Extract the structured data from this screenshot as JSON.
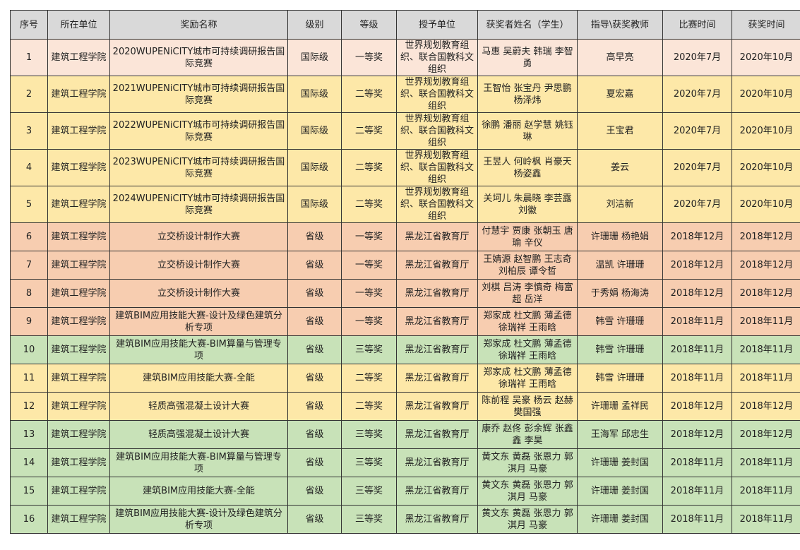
{
  "headers": [
    "序号",
    "所在单位",
    "奖励名称",
    "级别",
    "等级",
    "授予单位",
    "获奖者姓名（学生）",
    "指导\\获奖教师",
    "比赛时间",
    "获奖时间"
  ],
  "row_colors": {
    "pink": "#fbe5d8",
    "yellow": "#fde8a8",
    "salmon": "#f7cdb0",
    "green": "#c8e2b8",
    "header": "#d9d9d9"
  },
  "rows": [
    {
      "color": "pink",
      "cells": [
        "1",
        "建筑工程学院",
        "2020WUPENiCITY城市可持续调研报告国际竞赛",
        "国际级",
        "一等奖",
        "世界规划教育组织、联合国教科文组织",
        "马惠 吴蔚夫 韩瑞 李智勇",
        "高早亮",
        "2020年7月",
        "2020年10月"
      ]
    },
    {
      "color": "yellow",
      "cells": [
        "2",
        "建筑工程学院",
        "2021WUPENiCITY城市可持续调研报告国际竞赛",
        "国际级",
        "二等奖",
        "世界规划教育组织、联合国教科文组织",
        "王智怡 张宝丹 尹思鹏 杨泽炜",
        "夏宏嘉",
        "2020年7月",
        "2020年10月"
      ]
    },
    {
      "color": "yellow",
      "cells": [
        "3",
        "建筑工程学院",
        "2022WUPENiCITY城市可持续调研报告国际竞赛",
        "国际级",
        "二等奖",
        "世界规划教育组织、联合国教科文组织",
        "徐鹏 潘丽 赵学慧 姚钰琳",
        "王宝君",
        "2020年7月",
        "2020年10月"
      ]
    },
    {
      "color": "yellow",
      "cells": [
        "4",
        "建筑工程学院",
        "2023WUPENiCITY城市可持续调研报告国际竞赛",
        "国际级",
        "二等奖",
        "世界规划教育组织、联合国教科文组织",
        "王昱人 何岭枫 肖豪天 杨姿鑫",
        "姜云",
        "2020年7月",
        "2020年10月"
      ]
    },
    {
      "color": "yellow",
      "cells": [
        "5",
        "建筑工程学院",
        "2024WUPENiCITY城市可持续调研报告国际竞赛",
        "国际级",
        "二等奖",
        "世界规划教育组织、联合国教科文组织",
        "关坷儿 朱晨晓 李芸露 刘徽",
        "刘洁新",
        "2020年7月",
        "2020年10月"
      ]
    },
    {
      "color": "salmon",
      "cells": [
        "6",
        "建筑工程学院",
        "立交桥设计制作大赛",
        "省级",
        "一等奖",
        "黑龙江省教育厅",
        "付慧宇 贾康 张朝玉 唐瑜 辛仪",
        "许珊珊 杨艳娟",
        "2018年12月",
        "2018年12月"
      ]
    },
    {
      "color": "salmon",
      "cells": [
        "7",
        "建筑工程学院",
        "立交桥设计制作大赛",
        "省级",
        "一等奖",
        "黑龙江省教育厅",
        "王婧源 赵智鹏 王志奇 刘柏辰 谭令哲",
        "温凯 许珊珊",
        "2018年12月",
        "2018年12月"
      ]
    },
    {
      "color": "salmon",
      "cells": [
        "8",
        "建筑工程学院",
        "立交桥设计制作大赛",
        "省级",
        "一等奖",
        "黑龙江省教育厅",
        "刘棋 吕涛 李慎奇 梅富超 岳洋",
        "于秀娟 杨海涛",
        "2018年12月",
        "2018年12月"
      ]
    },
    {
      "color": "salmon",
      "cells": [
        "9",
        "建筑工程学院",
        "建筑BIM应用技能大赛-设计及绿色建筑分析专项",
        "省级",
        "一等奖",
        "黑龙江省教育厅",
        "郑家成 杜文鹏 薄孟德 徐瑞祥 王雨晗",
        "韩雪 许珊珊",
        "2018年11月",
        "2018年11月"
      ]
    },
    {
      "color": "green",
      "cells": [
        "10",
        "建筑工程学院",
        "建筑BIM应用技能大赛-BIM算量与管理专项",
        "省级",
        "三等奖",
        "黑龙江省教育厅",
        "郑家成 杜文鹏 薄孟德 徐瑞祥 王雨晗",
        "韩雪 许珊珊",
        "2018年11月",
        "2018年11月"
      ]
    },
    {
      "color": "yellow",
      "cells": [
        "11",
        "建筑工程学院",
        "建筑BIM应用技能大赛-全能",
        "省级",
        "二等奖",
        "黑龙江省教育厅",
        "郑家成 杜文鹏 薄孟德 徐瑞祥 王雨晗",
        "韩雪 许珊珊",
        "2018年11月",
        "2018年11月"
      ]
    },
    {
      "color": "yellow",
      "cells": [
        "12",
        "建筑工程学院",
        "轻质高强混凝土设计大赛",
        "省级",
        "二等奖",
        "黑龙江省教育厅",
        "陈前程 吴豪 杨云 赵赫 樊国强",
        "许珊珊 孟祥民",
        "2018年12月",
        "2018年12月"
      ]
    },
    {
      "color": "green",
      "cells": [
        "13",
        "建筑工程学院",
        "轻质高强混凝土设计大赛",
        "省级",
        "三等奖",
        "黑龙江省教育厅",
        "康乔 赵佟 彭余辉 张鑫鑫 李昊",
        "王海军 邱忠生",
        "2018年12月",
        "2018年12月"
      ]
    },
    {
      "color": "green",
      "cells": [
        "14",
        "建筑工程学院",
        "建筑BIM应用技能大赛-BIM算量与管理专项",
        "省级",
        "三等奖",
        "黑龙江省教育厅",
        "黄文东 黄磊 张恩力 郭淇月 马豪",
        "许珊珊 姜封国",
        "2018年11月",
        "2018年11月"
      ]
    },
    {
      "color": "green",
      "cells": [
        "15",
        "建筑工程学院",
        "建筑BIM应用技能大赛-全能",
        "省级",
        "三等奖",
        "黑龙江省教育厅",
        "黄文东 黄磊 张恩力 郭淇月 马豪",
        "许珊珊 姜封国",
        "2018年11月",
        "2018年11月"
      ]
    },
    {
      "color": "green",
      "cells": [
        "16",
        "建筑工程学院",
        "建筑BIM应用技能大赛-设计及绿色建筑分析专项",
        "省级",
        "三等奖",
        "黑龙江省教育厅",
        "黄文东 黄磊 张恩力 郭淇月 马豪",
        "许珊珊 姜封国",
        "2018年11月",
        "2018年11月"
      ]
    }
  ]
}
